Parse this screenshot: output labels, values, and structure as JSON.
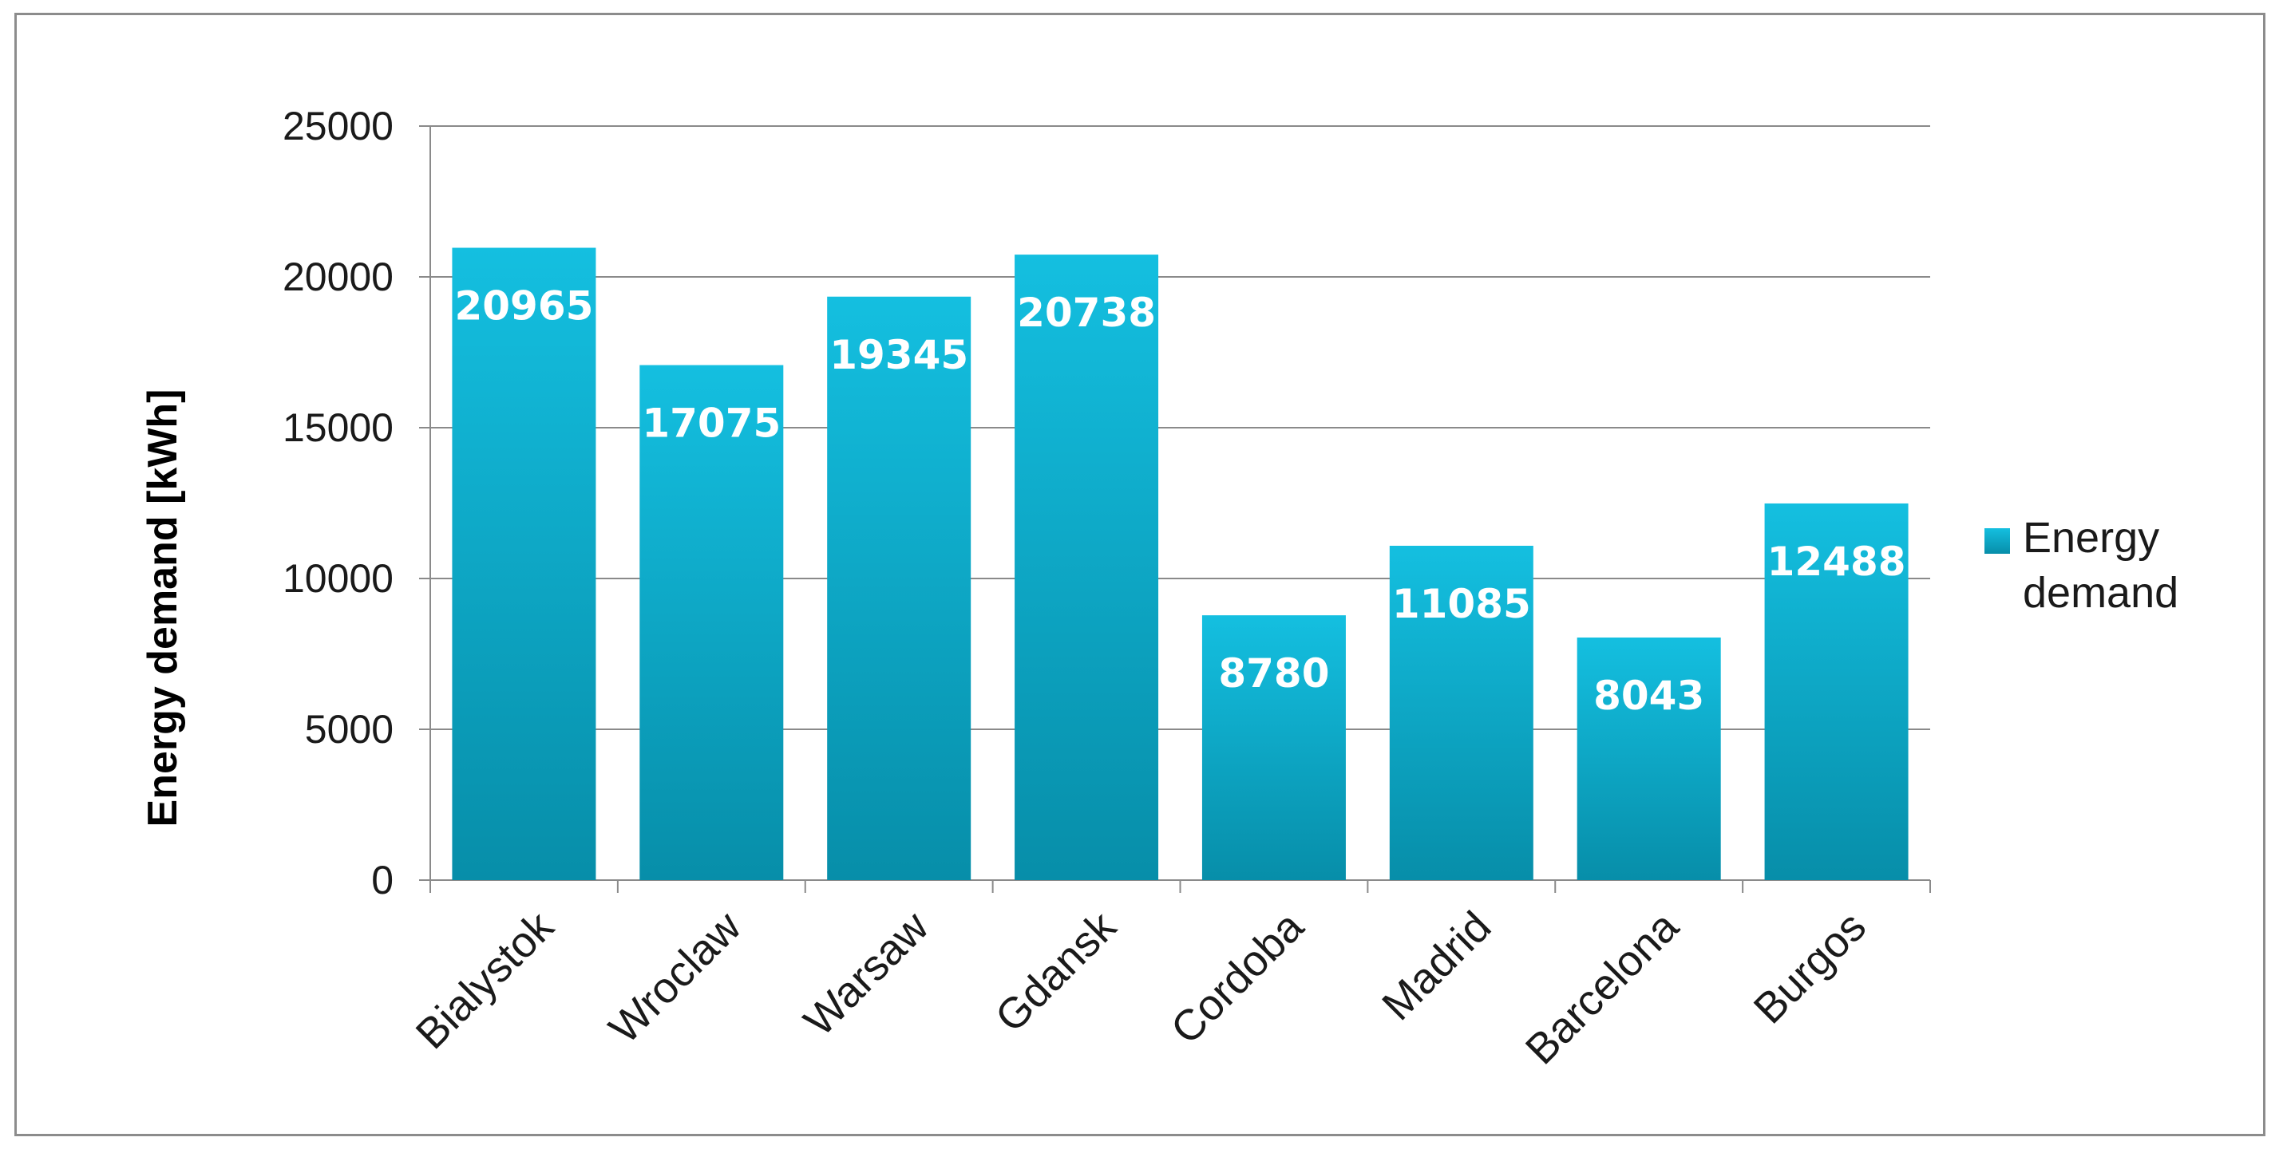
{
  "chart_data": {
    "type": "bar",
    "categories": [
      "Bialystok",
      "Wroclaw",
      "Warsaw",
      "Gdansk",
      "Cordoba",
      "Madrid",
      "Barcelona",
      "Burgos"
    ],
    "series": [
      {
        "name": "Energy demand",
        "values": [
          20965,
          17075,
          19345,
          20738,
          8780,
          11085,
          8043,
          12488
        ],
        "color": "#0aa7c6"
      }
    ],
    "data_labels": [
      "20965",
      "17075",
      "19345",
      "20738",
      "8780",
      "11085",
      "8043",
      "12488"
    ],
    "title": "",
    "xlabel": "",
    "ylabel": "Energy demand [kWh]",
    "ylim": [
      0,
      25000
    ],
    "yticks": [
      0,
      5000,
      10000,
      15000,
      20000,
      25000
    ],
    "ytick_labels": [
      "0",
      "5000",
      "10000",
      "15000",
      "20000",
      "25000"
    ],
    "grid": "horizontal",
    "legend": {
      "position": "right",
      "entries": [
        "Energy",
        "demand"
      ]
    }
  }
}
